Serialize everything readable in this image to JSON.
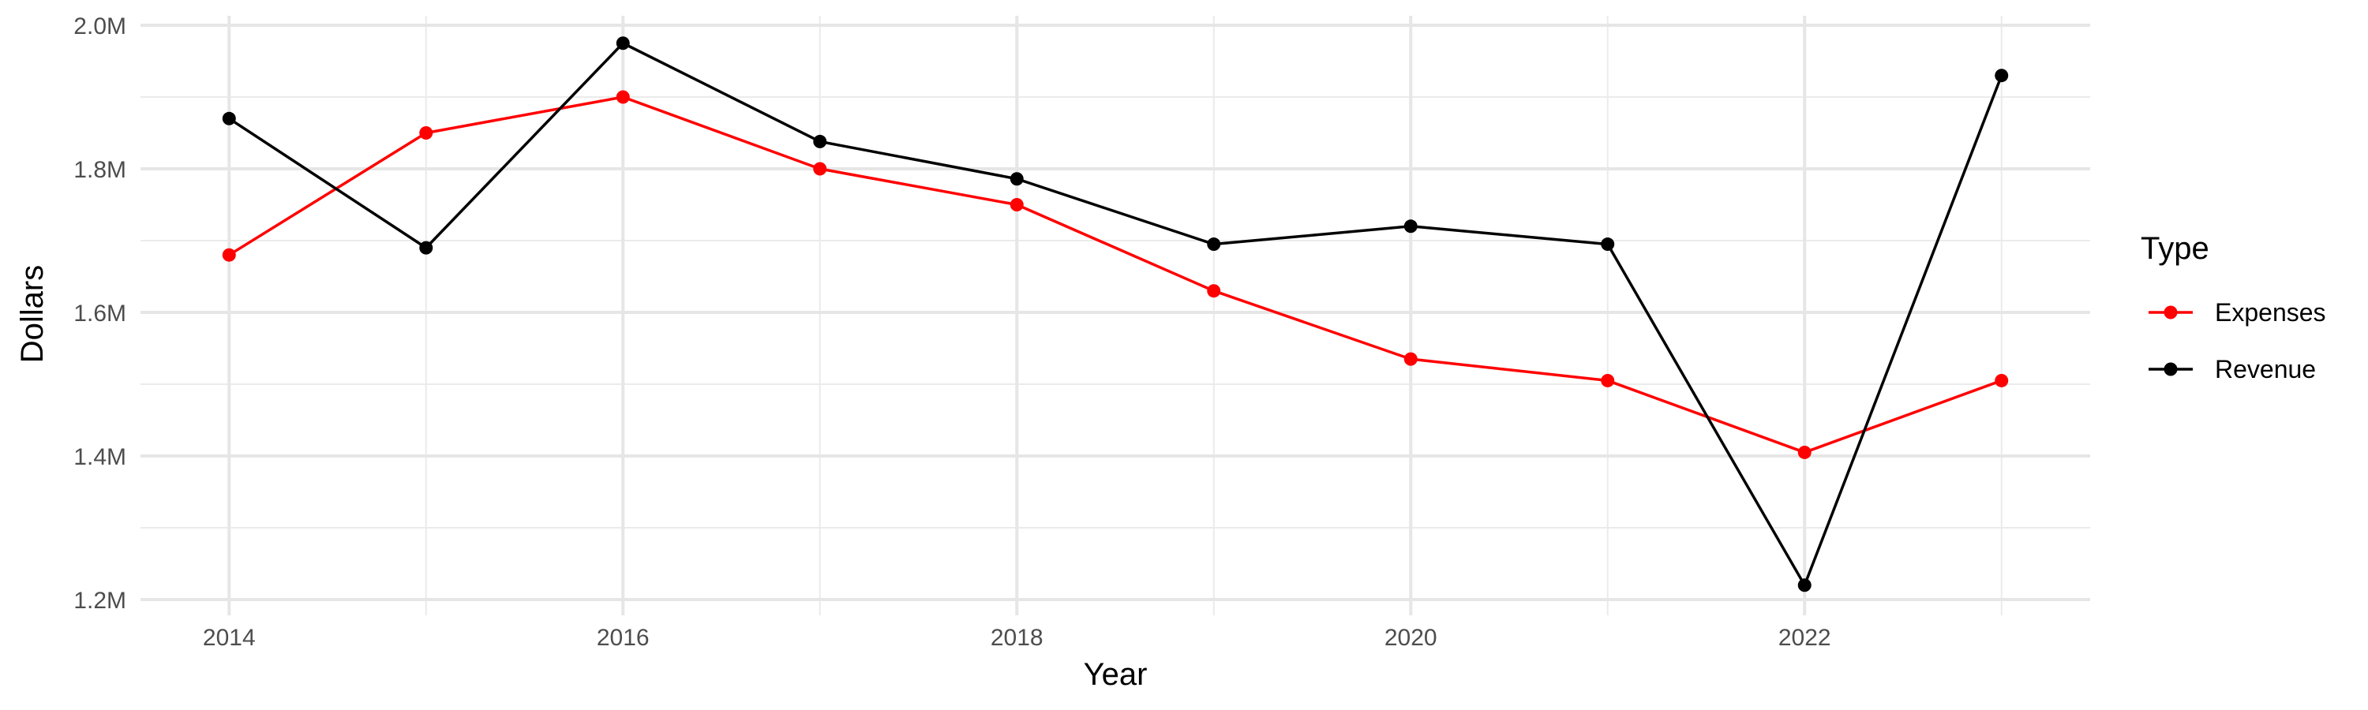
{
  "chart_data": {
    "type": "line",
    "title": "",
    "xlabel": "Year",
    "ylabel": "Dollars",
    "x": [
      2014,
      2015,
      2016,
      2017,
      2018,
      2019,
      2020,
      2021,
      2022,
      2023
    ],
    "xlim": [
      2013.55,
      2023.45
    ],
    "ylim": [
      1.2,
      2.0
    ],
    "y_unit": "M",
    "x_ticks": [
      2014,
      2016,
      2018,
      2020,
      2022
    ],
    "x_tick_labels": [
      "2014",
      "2016",
      "2018",
      "2020",
      "2022"
    ],
    "y_ticks": [
      1.2,
      1.4,
      1.6,
      1.8,
      2.0
    ],
    "y_tick_labels": [
      "1.2M",
      "1.4M",
      "1.6M",
      "1.8M",
      "2.0M"
    ],
    "grid": true,
    "legend": {
      "title": "Type",
      "position": "right"
    },
    "series": [
      {
        "name": "Expenses",
        "color": "#ff0000",
        "values": [
          1.68,
          1.85,
          1.9,
          1.8,
          1.75,
          1.63,
          1.535,
          1.505,
          1.405,
          1.505
        ]
      },
      {
        "name": "Revenue",
        "color": "#000000",
        "values": [
          1.87,
          1.69,
          1.975,
          1.838,
          1.786,
          1.695,
          1.72,
          1.695,
          1.22,
          1.93
        ]
      }
    ]
  }
}
